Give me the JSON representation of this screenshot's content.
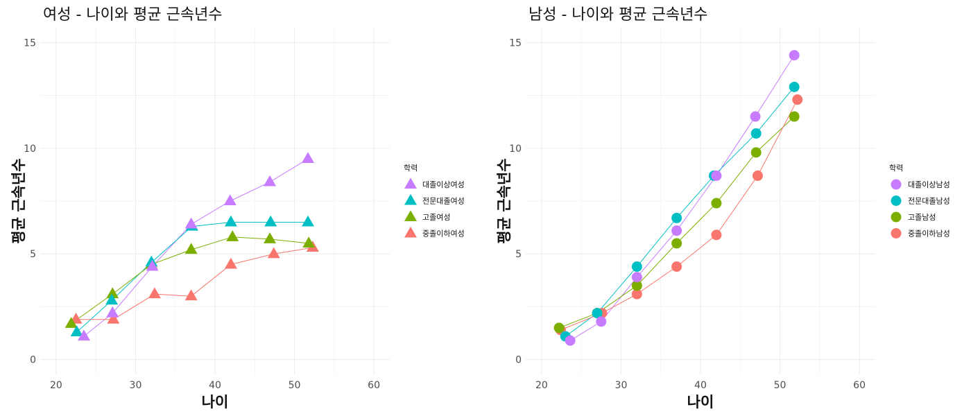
{
  "chart_data": [
    {
      "type": "line",
      "title": "여성 - 나이와 평균 근속년수",
      "xlabel": "나이",
      "ylabel": "평균 근속년수",
      "xlim": [
        18,
        62
      ],
      "ylim": [
        -0.7,
        15.7
      ],
      "xticks": [
        20,
        30,
        40,
        50,
        60
      ],
      "yticks": [
        0,
        5,
        10,
        15
      ],
      "marker": "triangle",
      "legend_title": "학력",
      "legend_position": "right",
      "grid": true,
      "series": [
        {
          "name": "대졸이상여성",
          "color": "#C77CFF",
          "points": [
            [
              23.5,
              1.1
            ],
            [
              27.1,
              2.2
            ],
            [
              32.1,
              4.4
            ],
            [
              37.0,
              6.4
            ],
            [
              41.9,
              7.5
            ],
            [
              46.9,
              8.4
            ],
            [
              51.7,
              9.5
            ]
          ]
        },
        {
          "name": "전문대졸여성",
          "color": "#00BFC4",
          "points": [
            [
              22.6,
              1.3
            ],
            [
              27.0,
              2.8
            ],
            [
              32.0,
              4.6
            ],
            [
              37.1,
              6.3
            ],
            [
              42.0,
              6.5
            ],
            [
              47.0,
              6.5
            ],
            [
              51.7,
              6.5
            ]
          ]
        },
        {
          "name": "고졸여성",
          "color": "#7CAE00",
          "points": [
            [
              21.9,
              1.7
            ],
            [
              27.1,
              3.1
            ],
            [
              32.0,
              4.5
            ],
            [
              37.0,
              5.2
            ],
            [
              42.2,
              5.8
            ],
            [
              46.9,
              5.7
            ],
            [
              51.8,
              5.5
            ]
          ]
        },
        {
          "name": "중졸이하여성",
          "color": "#F8766D",
          "points": [
            [
              22.5,
              1.9
            ],
            [
              27.2,
              1.9
            ],
            [
              32.4,
              3.1
            ],
            [
              37.0,
              3.0
            ],
            [
              42.0,
              4.5
            ],
            [
              47.4,
              5.0
            ],
            [
              52.3,
              5.3
            ]
          ]
        }
      ]
    },
    {
      "type": "line",
      "title": "남성 - 나이와 평균 근속년수",
      "xlabel": "나이",
      "ylabel": "평균 근속년수",
      "xlim": [
        18,
        62
      ],
      "ylim": [
        -0.7,
        15.7
      ],
      "xticks": [
        20,
        30,
        40,
        50,
        60
      ],
      "yticks": [
        0,
        5,
        10,
        15
      ],
      "marker": "circle",
      "legend_title": "학력",
      "legend_position": "right",
      "grid": true,
      "series": [
        {
          "name": "대졸이상남성",
          "color": "#C77CFF",
          "points": [
            [
              23.6,
              0.9
            ],
            [
              27.5,
              1.8
            ],
            [
              32.0,
              3.9
            ],
            [
              37.0,
              6.1
            ],
            [
              42.0,
              8.7
            ],
            [
              46.9,
              11.5
            ],
            [
              51.8,
              14.4
            ]
          ]
        },
        {
          "name": "전문대졸남성",
          "color": "#00BFC4",
          "points": [
            [
              23.0,
              1.1
            ],
            [
              27.0,
              2.2
            ],
            [
              32.0,
              4.4
            ],
            [
              37.0,
              6.7
            ],
            [
              41.7,
              8.7
            ],
            [
              47.0,
              10.7
            ],
            [
              51.8,
              12.9
            ]
          ]
        },
        {
          "name": "고졸남성",
          "color": "#7CAE00",
          "points": [
            [
              22.2,
              1.5
            ],
            [
              27.0,
              2.2
            ],
            [
              32.0,
              3.5
            ],
            [
              37.0,
              5.5
            ],
            [
              42.0,
              7.4
            ],
            [
              47.0,
              9.8
            ],
            [
              51.8,
              11.5
            ]
          ]
        },
        {
          "name": "중졸이하남성",
          "color": "#F8766D",
          "points": [
            [
              22.4,
              1.4
            ],
            [
              27.6,
              2.2
            ],
            [
              32.0,
              3.1
            ],
            [
              37.0,
              4.4
            ],
            [
              42.0,
              5.9
            ],
            [
              47.2,
              8.7
            ],
            [
              52.2,
              12.3
            ]
          ]
        }
      ]
    }
  ]
}
